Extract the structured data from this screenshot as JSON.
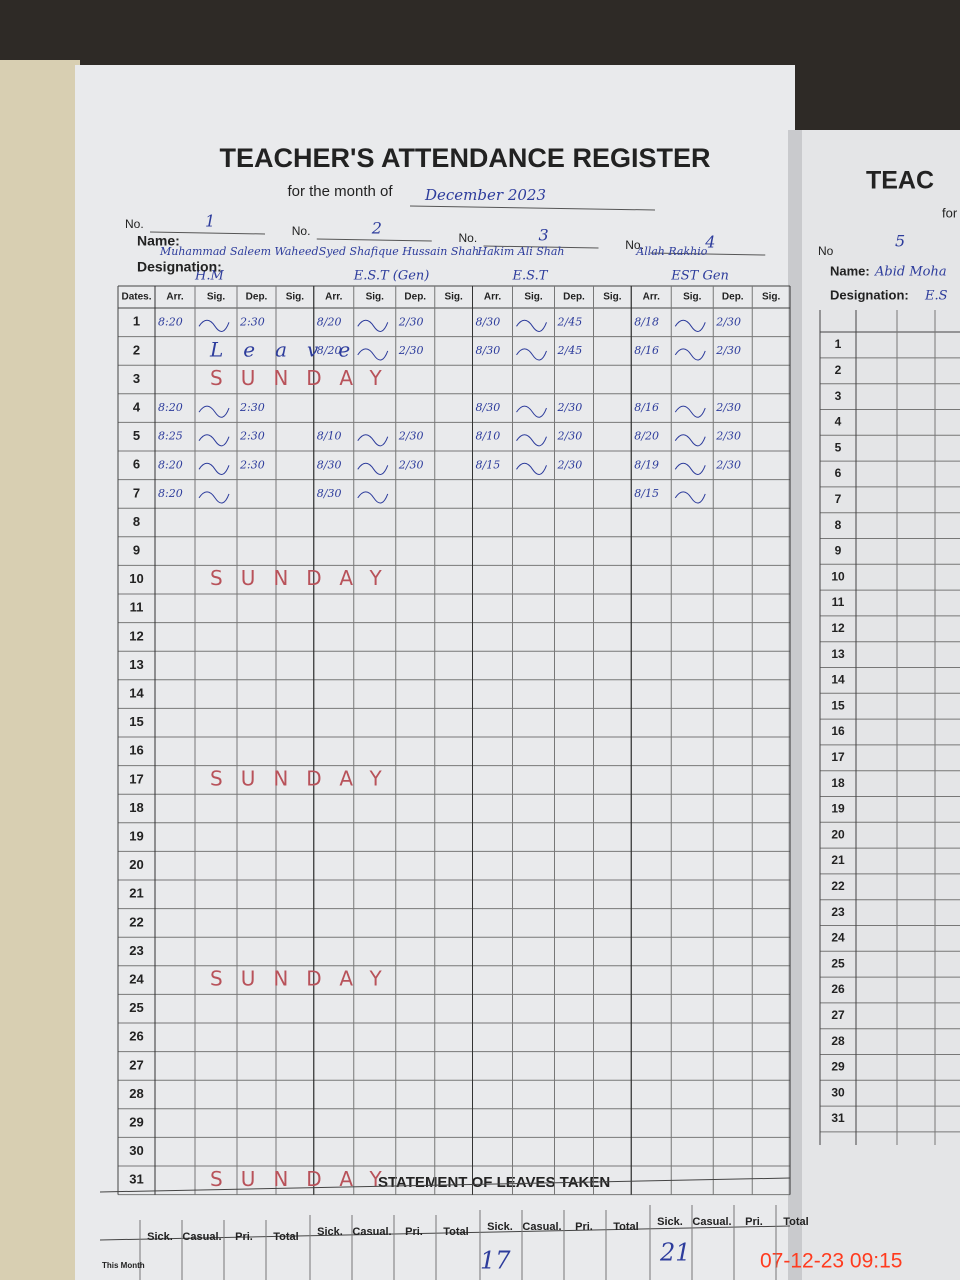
{
  "header": {
    "title": "TEACHER'S ATTENDANCE REGISTER",
    "month_label": "for the month of",
    "month": "December 2023"
  },
  "labels": {
    "no": "No.",
    "name": "Name:",
    "designation": "Designation:",
    "dates": "Dates.",
    "columns": [
      "Arr.",
      "Sig.",
      "Dep.",
      "Sig."
    ]
  },
  "teachers": [
    {
      "no": "1",
      "name": "Muhammad Saleem Waheed",
      "designation": "H.M"
    },
    {
      "no": "2",
      "name": "Syed Shafique Hussain Shah",
      "designation": "E.S.T (Gen)"
    },
    {
      "no": "3",
      "name": "Hakim Ali Shah",
      "designation": "E.S.T"
    },
    {
      "no": "4",
      "name": "Allah Rakhio",
      "designation": "EST Gen"
    }
  ],
  "rows": [
    {
      "date": "1",
      "times": [
        [
          "8:20",
          "2:30"
        ],
        [
          "8/20",
          "2/30"
        ],
        [
          "8/30",
          "2/45"
        ],
        [
          "8/18",
          "2/30"
        ]
      ]
    },
    {
      "date": "2",
      "note": "Leave",
      "times": [
        null,
        [
          "8/20",
          "2/30"
        ],
        [
          "8/30",
          "2/45"
        ],
        [
          "8/16",
          "2/30"
        ]
      ]
    },
    {
      "date": "3",
      "note": "SUNDAY"
    },
    {
      "date": "4",
      "times": [
        [
          "8:20",
          "2:30"
        ],
        null,
        [
          "8/30",
          "2/30"
        ],
        [
          "8/16",
          "2/30"
        ]
      ]
    },
    {
      "date": "5",
      "times": [
        [
          "8:25",
          "2:30"
        ],
        [
          "8/10",
          "2/30"
        ],
        [
          "8/10",
          "2/30"
        ],
        [
          "8/20",
          "2/30"
        ]
      ]
    },
    {
      "date": "6",
      "times": [
        [
          "8:20",
          "2:30"
        ],
        [
          "8/30",
          "2/30"
        ],
        [
          "8/15",
          "2/30"
        ],
        [
          "8/19",
          "2/30"
        ]
      ]
    },
    {
      "date": "7",
      "times": [
        [
          "8:20",
          null
        ],
        [
          "8/30",
          null
        ],
        null,
        [
          "8/15",
          null
        ]
      ]
    },
    {
      "date": "8"
    },
    {
      "date": "9"
    },
    {
      "date": "10",
      "note": "SUNDAY"
    },
    {
      "date": "11"
    },
    {
      "date": "12"
    },
    {
      "date": "13"
    },
    {
      "date": "14"
    },
    {
      "date": "15"
    },
    {
      "date": "16"
    },
    {
      "date": "17",
      "note": "SUNDAY"
    },
    {
      "date": "18"
    },
    {
      "date": "19"
    },
    {
      "date": "20"
    },
    {
      "date": "21"
    },
    {
      "date": "22"
    },
    {
      "date": "23"
    },
    {
      "date": "24",
      "note": "SUNDAY"
    },
    {
      "date": "25"
    },
    {
      "date": "26"
    },
    {
      "date": "27"
    },
    {
      "date": "28"
    },
    {
      "date": "29"
    },
    {
      "date": "30"
    },
    {
      "date": "31",
      "note": "SUNDAY"
    }
  ],
  "leaves": {
    "title": "STATEMENT OF LEAVES TAKEN",
    "columns": [
      "Sick.",
      "Casual.",
      "Pri.",
      "Total"
    ],
    "this_month": "This Month",
    "totals": [
      "17",
      "21"
    ]
  },
  "right_page": {
    "title": "TEAC",
    "month_label": "for",
    "no_label": "No",
    "no": "5",
    "name": "Abid Moha",
    "designation": "E.S"
  },
  "timestamp": "07-12-23  09:15"
}
